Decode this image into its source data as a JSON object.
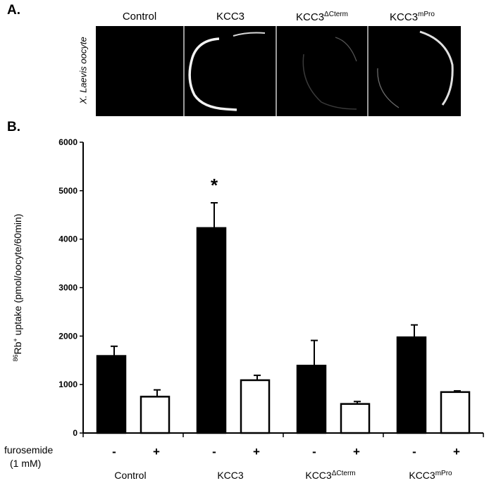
{
  "panel_a": {
    "label": "A.",
    "side_label": "X. Laevis oocyte",
    "titles": [
      {
        "base": "Control",
        "sup": ""
      },
      {
        "base": "KCC3",
        "sup": ""
      },
      {
        "base": "KCC3",
        "sup": "ΔCterm"
      },
      {
        "base": "KCC3",
        "sup": "mPro"
      }
    ]
  },
  "panel_b": {
    "label": "B."
  },
  "chart_data": {
    "type": "bar",
    "ylabel": {
      "sup": "86",
      "base": "Rb",
      "sup2": "+",
      "rest": " uptake (pmol/oocyte/60min)"
    },
    "ylim": [
      0,
      6000
    ],
    "yticks": [
      0,
      1000,
      2000,
      3000,
      4000,
      5000,
      6000
    ],
    "groups": [
      {
        "base": "Control",
        "sup": ""
      },
      {
        "base": "KCC3",
        "sup": ""
      },
      {
        "base": "KCC3",
        "sup": "ΔCterm"
      },
      {
        "base": "KCC3",
        "sup": "mPro"
      }
    ],
    "treatment_label_line1": "furosemide",
    "treatment_label_line2": "(1 mM)",
    "treatment_marks": [
      "-",
      "+"
    ],
    "series": [
      {
        "treatment": "-",
        "fill": "#000000",
        "values": [
          1590,
          4230,
          1390,
          1975
        ],
        "errors": [
          200,
          520,
          520,
          255
        ]
      },
      {
        "treatment": "+",
        "fill": "#ffffff",
        "values": [
          750,
          1090,
          600,
          845
        ],
        "errors": [
          140,
          100,
          50,
          25
        ]
      }
    ],
    "annotations": [
      {
        "group": 1,
        "series": 0,
        "text": "*"
      }
    ]
  }
}
